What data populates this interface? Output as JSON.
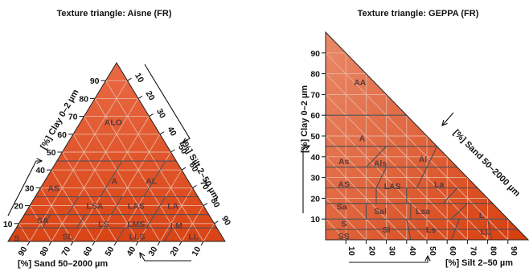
{
  "chart_data": [
    {
      "type": "ternary",
      "title": "Texture triangle: Aisne (FR)",
      "axes": {
        "clay": {
          "label": "[%] Clay 0–2 µm",
          "range": [
            0,
            100
          ]
        },
        "silt": {
          "label": "[%] Silt 2–50 µm",
          "range": [
            0,
            100
          ]
        },
        "sand": {
          "label": "[%] Sand 50–2000 µm",
          "range": [
            0,
            100
          ]
        }
      },
      "ticks": [
        "10",
        "20",
        "30",
        "40",
        "50",
        "60",
        "70",
        "80",
        "90"
      ],
      "grid": true,
      "color_gradient": [
        "#e96a45",
        "#d94415"
      ],
      "classes": [
        "ALO",
        "A",
        "AL",
        "AS",
        "LSA",
        "LAS",
        "LA",
        "SA",
        "LS",
        "LMS",
        "LM",
        "S",
        "SL",
        "LLS",
        "LL"
      ]
    },
    {
      "type": "ternary",
      "title": "Texture triangle: GEPPA (FR)",
      "axes": {
        "clay": {
          "label": "[%] Clay 0–2 µm",
          "range": [
            0,
            100
          ]
        },
        "silt": {
          "label": "[%] Silt 2–50 µm",
          "range": [
            0,
            100
          ]
        },
        "sand": {
          "label": "[%] Sand 50–2000 µm",
          "range": [
            0,
            100
          ]
        }
      },
      "ticks": [
        "10",
        "20",
        "30",
        "40",
        "50",
        "60",
        "70",
        "80",
        "90"
      ],
      "grid": true,
      "color_gradient": [
        "#e98a6a",
        "#d63d0c"
      ],
      "classes": [
        "AA",
        "A",
        "As",
        "Als",
        "Al",
        "AS",
        "LAS",
        "La",
        "Sa",
        "Sal",
        "Lsa",
        "L",
        "S",
        "Sl",
        "Ls",
        "LL",
        "SS"
      ]
    }
  ]
}
